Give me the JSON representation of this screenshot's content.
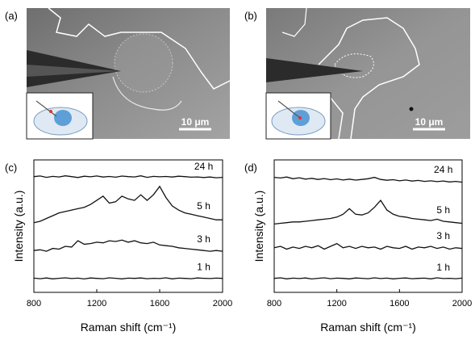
{
  "panels": [
    {
      "label": "(a)",
      "scale_bar": "10 μm"
    },
    {
      "label": "(b)",
      "scale_bar": "10 μm"
    }
  ],
  "chart_data": [
    {
      "type": "line",
      "panel_label": "(c)",
      "x_label": "Raman shift (cm⁻¹)",
      "y_label": "Intensity (a.u.)",
      "x": [
        800,
        840,
        880,
        920,
        960,
        1000,
        1040,
        1080,
        1120,
        1160,
        1200,
        1240,
        1280,
        1320,
        1360,
        1400,
        1440,
        1480,
        1520,
        1560,
        1600,
        1640,
        1680,
        1720,
        1760,
        1800,
        1840,
        1880,
        1920,
        1960,
        2000
      ],
      "xlim": [
        800,
        2000
      ],
      "xticks": [
        800,
        1200,
        1600,
        2000
      ],
      "ylim": [
        0,
        9.5
      ],
      "series": [
        {
          "name": "24 h",
          "color": "#111111",
          "values": [
            8.3,
            8.35,
            8.25,
            8.32,
            8.28,
            8.36,
            8.3,
            8.24,
            8.33,
            8.29,
            8.35,
            8.27,
            8.31,
            8.26,
            8.34,
            8.3,
            8.28,
            8.36,
            8.25,
            8.32,
            8.29,
            8.31,
            8.27,
            8.33,
            8.3,
            8.26,
            8.28,
            8.24,
            8.27,
            8.22,
            8.25
          ]
        },
        {
          "name": "5 h",
          "color": "#111111",
          "values": [
            5.0,
            5.1,
            5.3,
            5.5,
            5.7,
            5.8,
            5.9,
            6.0,
            6.1,
            6.3,
            6.6,
            6.9,
            6.4,
            6.5,
            6.9,
            6.7,
            6.6,
            7.0,
            6.6,
            7.0,
            7.6,
            6.8,
            6.2,
            5.9,
            5.7,
            5.6,
            5.5,
            5.4,
            5.3,
            5.2,
            5.2
          ]
        },
        {
          "name": "3 h",
          "color": "#111111",
          "values": [
            3.0,
            3.05,
            2.95,
            3.15,
            3.1,
            3.3,
            3.25,
            3.7,
            3.45,
            3.5,
            3.6,
            3.55,
            3.7,
            3.65,
            3.75,
            3.6,
            3.7,
            3.55,
            3.5,
            3.6,
            3.4,
            3.35,
            3.3,
            3.2,
            3.15,
            3.1,
            3.05,
            3.0,
            2.95,
            3.0,
            2.95
          ]
        },
        {
          "name": "1 h",
          "color": "#111111",
          "values": [
            1.02,
            0.98,
            1.03,
            0.97,
            1.01,
            1.04,
            0.99,
            1.02,
            0.96,
            1.03,
            1.0,
            0.98,
            1.04,
            1.01,
            0.97,
            1.02,
            1.0,
            1.03,
            0.98,
            1.01,
            0.99,
            1.04,
            0.97,
            1.02,
            1.0,
            0.98,
            1.03,
            1.01,
            0.99,
            1.02,
            1.0
          ]
        }
      ]
    },
    {
      "type": "line",
      "panel_label": "(d)",
      "x_label": "Raman shift (cm⁻¹)",
      "y_label": "Intensity (a.u.)",
      "x": [
        800,
        840,
        880,
        920,
        960,
        1000,
        1040,
        1080,
        1120,
        1160,
        1200,
        1240,
        1280,
        1320,
        1360,
        1400,
        1440,
        1480,
        1520,
        1560,
        1600,
        1640,
        1680,
        1720,
        1760,
        1800,
        1840,
        1880,
        1920,
        1960,
        2000
      ],
      "xlim": [
        800,
        2000
      ],
      "xticks": [
        800,
        1200,
        1600,
        2000
      ],
      "ylim": [
        0,
        9.5
      ],
      "series": [
        {
          "name": "24 h",
          "color": "#111111",
          "values": [
            8.25,
            8.2,
            8.27,
            8.15,
            8.22,
            8.12,
            8.18,
            8.1,
            8.16,
            8.08,
            8.14,
            8.06,
            8.12,
            8.05,
            8.1,
            8.15,
            8.25,
            8.1,
            8.04,
            8.08,
            8.0,
            8.06,
            7.98,
            8.03,
            7.96,
            8.0,
            7.94,
            7.99,
            7.92,
            7.96,
            7.9
          ]
        },
        {
          "name": "5 h",
          "color": "#111111",
          "values": [
            4.9,
            4.95,
            5.0,
            5.05,
            5.05,
            5.1,
            5.15,
            5.2,
            5.25,
            5.3,
            5.4,
            5.6,
            6.0,
            5.6,
            5.55,
            5.7,
            6.1,
            6.6,
            5.9,
            5.6,
            5.45,
            5.4,
            5.3,
            5.25,
            5.2,
            5.15,
            5.25,
            5.1,
            5.05,
            5.0,
            4.95
          ]
        },
        {
          "name": "3 h",
          "color": "#111111",
          "values": [
            3.2,
            3.3,
            3.1,
            3.25,
            3.15,
            3.3,
            3.2,
            3.35,
            3.1,
            3.3,
            3.5,
            3.2,
            3.3,
            3.15,
            3.3,
            3.2,
            3.25,
            3.1,
            3.3,
            3.2,
            3.15,
            3.3,
            3.1,
            3.25,
            3.2,
            3.3,
            3.15,
            3.25,
            3.1,
            3.2,
            3.15
          ]
        },
        {
          "name": "1 h",
          "color": "#111111",
          "values": [
            1.0,
            1.04,
            0.97,
            1.02,
            0.99,
            1.03,
            0.96,
            1.01,
            1.04,
            0.98,
            1.02,
            1.0,
            0.97,
            1.03,
            1.01,
            0.98,
            1.04,
            0.99,
            1.02,
            0.97,
            1.01,
            1.03,
            0.98,
            1.0,
            1.02,
            0.97,
            1.04,
            0.99,
            1.01,
            0.98,
            1.02
          ]
        }
      ]
    }
  ]
}
